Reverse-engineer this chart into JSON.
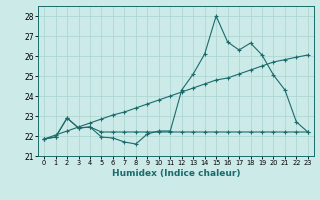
{
  "xlabel": "Humidex (Indice chaleur)",
  "background_color": "#cceae8",
  "grid_color": "#aad4d0",
  "line_color": "#1a6b6b",
  "x_values": [
    0,
    1,
    2,
    3,
    4,
    5,
    6,
    7,
    8,
    9,
    10,
    11,
    12,
    13,
    14,
    15,
    16,
    17,
    18,
    19,
    20,
    21,
    22,
    23
  ],
  "line1_y": [
    21.85,
    21.95,
    22.9,
    22.4,
    22.45,
    21.95,
    21.9,
    21.7,
    21.6,
    22.1,
    22.25,
    22.25,
    24.3,
    25.1,
    26.1,
    28.0,
    26.7,
    26.3,
    26.65,
    26.05,
    25.05,
    24.3,
    22.7,
    22.2
  ],
  "line2_y": [
    21.85,
    21.95,
    22.9,
    22.4,
    22.45,
    22.2,
    22.2,
    22.2,
    22.2,
    22.2,
    22.2,
    22.2,
    22.2,
    22.2,
    22.2,
    22.2,
    22.2,
    22.2,
    22.2,
    22.2,
    22.2,
    22.2,
    22.2,
    22.2
  ],
  "line3_y": [
    21.85,
    22.05,
    22.25,
    22.45,
    22.65,
    22.85,
    23.05,
    23.2,
    23.4,
    23.6,
    23.8,
    24.0,
    24.2,
    24.4,
    24.6,
    24.8,
    24.9,
    25.1,
    25.3,
    25.5,
    25.7,
    25.82,
    25.94,
    26.05
  ],
  "ylim": [
    21.0,
    28.5
  ],
  "xlim": [
    -0.5,
    23.5
  ],
  "yticks": [
    21,
    22,
    23,
    24,
    25,
    26,
    27,
    28
  ],
  "xticks": [
    0,
    1,
    2,
    3,
    4,
    5,
    6,
    7,
    8,
    9,
    10,
    11,
    12,
    13,
    14,
    15,
    16,
    17,
    18,
    19,
    20,
    21,
    22,
    23
  ]
}
